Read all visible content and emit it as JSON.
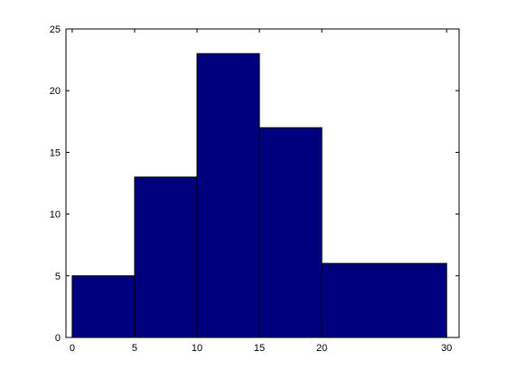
{
  "chart_data": {
    "type": "bar",
    "title": "",
    "xlabel": "",
    "ylabel": "",
    "bins": [
      {
        "from": 0,
        "to": 5,
        "count": 5
      },
      {
        "from": 5,
        "to": 10,
        "count": 13
      },
      {
        "from": 10,
        "to": 15,
        "count": 23
      },
      {
        "from": 15,
        "to": 20,
        "count": 17
      },
      {
        "from": 20,
        "to": 30,
        "count": 6
      }
    ],
    "xlim": [
      -0.5,
      31
    ],
    "ylim": [
      0,
      25
    ],
    "xticks": [
      0,
      5,
      10,
      15,
      20,
      30
    ],
    "yticks": [
      0,
      5,
      10,
      15,
      20,
      25
    ],
    "grid": false,
    "legend": "none",
    "bar_color": "#00007f",
    "edge_color": "#000000"
  }
}
